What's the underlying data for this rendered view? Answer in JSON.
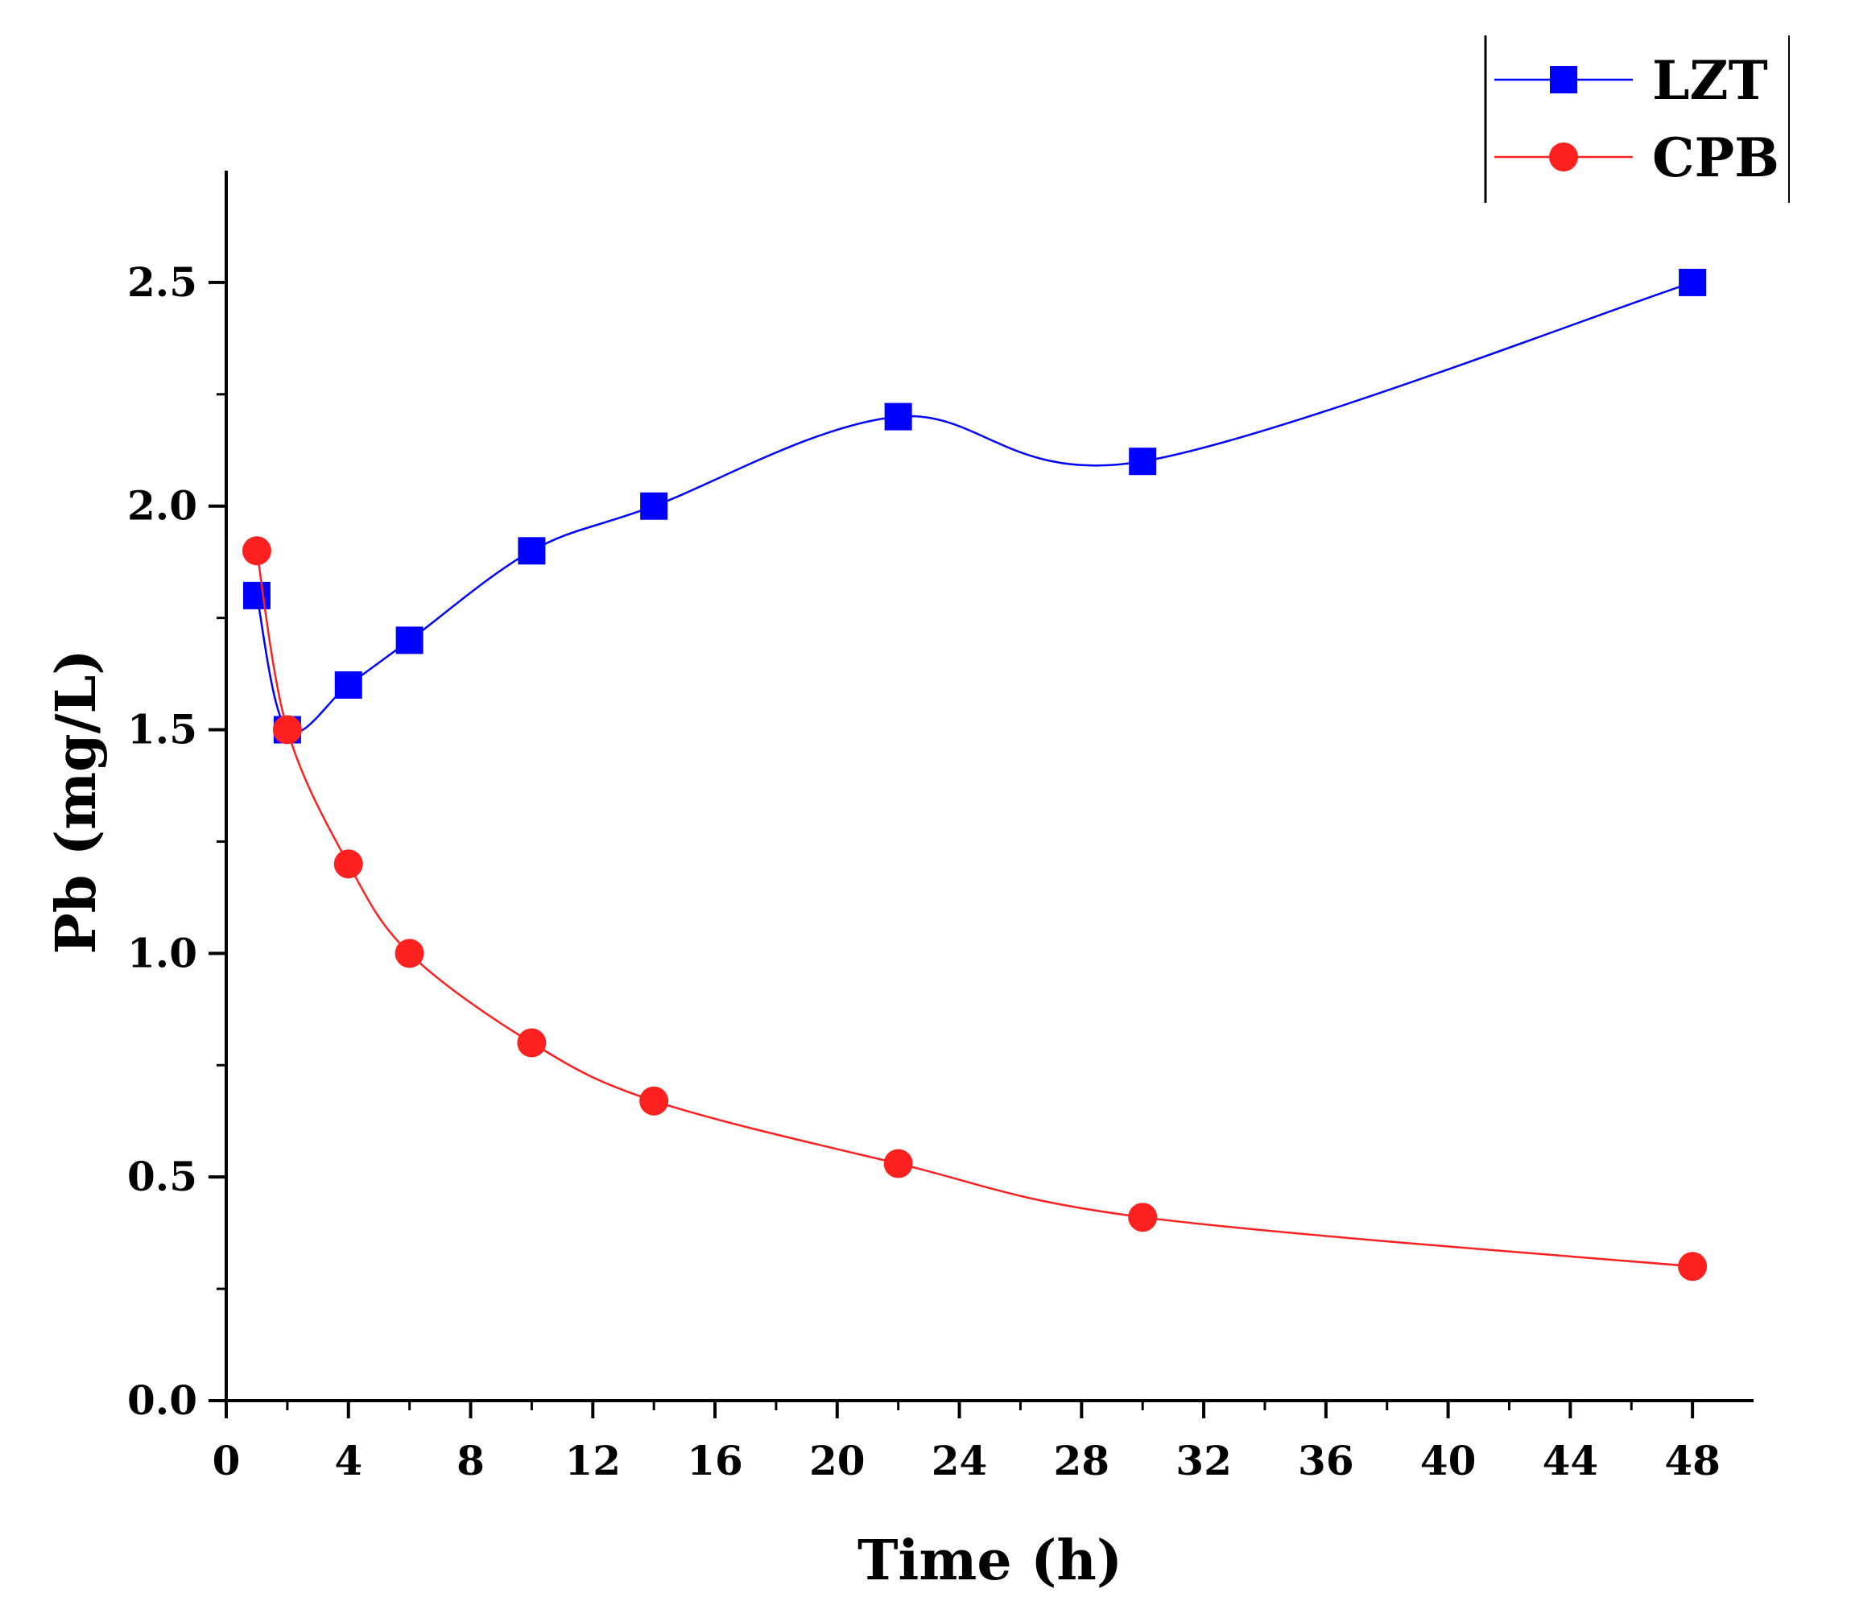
{
  "chart_data": {
    "type": "line",
    "title": "",
    "xlabel": "Time (h)",
    "ylabel": "Pb (mg/L)",
    "xlim": [
      0,
      50
    ],
    "ylim": [
      0,
      2.75
    ],
    "xticks": [
      0,
      4,
      8,
      12,
      16,
      20,
      24,
      28,
      32,
      36,
      40,
      44,
      48
    ],
    "xtick_labels": [
      "0",
      "4",
      "8",
      "12",
      "16",
      "20",
      "24",
      "28",
      "32",
      "36",
      "40",
      "44",
      "48"
    ],
    "yticks": [
      0,
      0.5,
      1.0,
      1.5,
      2.0,
      2.5
    ],
    "ytick_labels": [
      "0.0",
      "0.5",
      "1.0",
      "1.5",
      "2.0",
      "2.5"
    ],
    "legend_position": "top-right",
    "series": [
      {
        "name": "LZT",
        "color": "#0000ff",
        "marker": "square",
        "x": [
          1,
          2,
          4,
          6,
          10,
          14,
          22,
          30,
          48
        ],
        "values": [
          1.8,
          1.5,
          1.6,
          1.7,
          1.9,
          2.0,
          2.2,
          2.1,
          2.5
        ]
      },
      {
        "name": "CPB",
        "color": "#ff2020",
        "marker": "circle",
        "x": [
          1,
          2,
          4,
          6,
          10,
          14,
          22,
          30,
          48
        ],
        "values": [
          1.9,
          1.5,
          1.2,
          1.0,
          0.8,
          0.67,
          0.53,
          0.41,
          0.3
        ]
      }
    ]
  }
}
